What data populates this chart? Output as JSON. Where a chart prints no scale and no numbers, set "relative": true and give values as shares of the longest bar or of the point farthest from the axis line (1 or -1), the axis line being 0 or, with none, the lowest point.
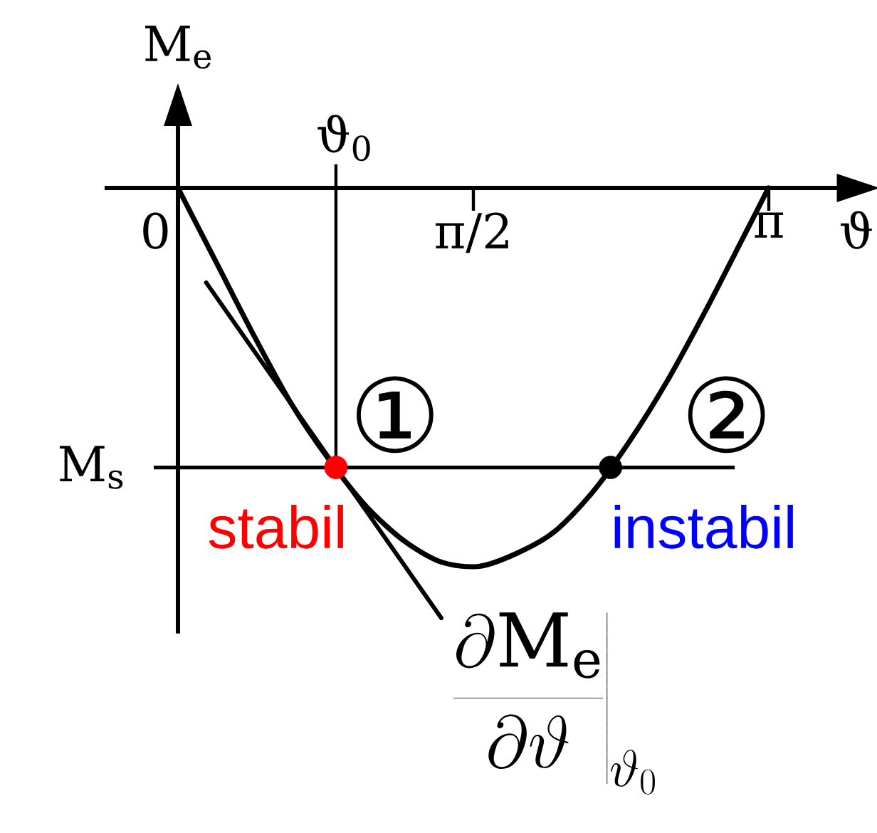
{
  "chart_data": {
    "type": "line",
    "xlabel": "ϑ",
    "ylabel": "M$_{e}$",
    "relative": true,
    "xlim": [
      -0.39,
      3.7
    ],
    "xticks": [
      0,
      {
        "value": 1.5708,
        "label": "π/2"
      },
      {
        "value": 3.1416,
        "label": "π"
      }
    ],
    "series": [
      {
        "color": "#000000",
        "x": [
          0,
          0.2,
          0.4,
          0.6,
          0.8,
          1.0,
          1.2,
          1.4,
          1.6,
          1.8,
          2.0,
          2.2,
          2.4,
          2.6,
          2.8,
          3.0,
          3.14
        ],
        "values": [
          0,
          -0.17,
          -0.34,
          -0.5,
          -0.63,
          -0.74,
          -0.82,
          -0.87,
          -0.88,
          -0.85,
          -0.8,
          -0.71,
          -0.59,
          -0.45,
          -0.29,
          -0.12,
          0
        ]
      },
      {
        "name": "\\left.\\frac{\\partial \\mathrm{M}_\\mathrm{e}}{\\partial \\vartheta}\\right|_{\\vartheta_0}",
        "color": "#000000",
        "x": [
          0.15,
          1.4
        ],
        "values": [
          -0.22,
          -1.0
        ]
      },
      {
        "type": "scatter",
        "name": "stabil",
        "color": "#ff0000",
        "marker": "circle",
        "x": [
          0.84
        ],
        "values": [
          -0.65
        ]
      },
      {
        "type": "scatter",
        "name": "instabil",
        "color": "#000000",
        "marker": "circle",
        "x": [
          2.3
        ],
        "values": [
          -0.65
        ]
      }
    ],
    "ref_lines": [
      {
        "axis": "y",
        "value": -0.65,
        "label": "M$_{s}$"
      },
      {
        "axis": "x",
        "value": 0.84,
        "label": "ϑ$_{0}$"
      }
    ],
    "annotations": [
      "①",
      "②"
    ]
  }
}
